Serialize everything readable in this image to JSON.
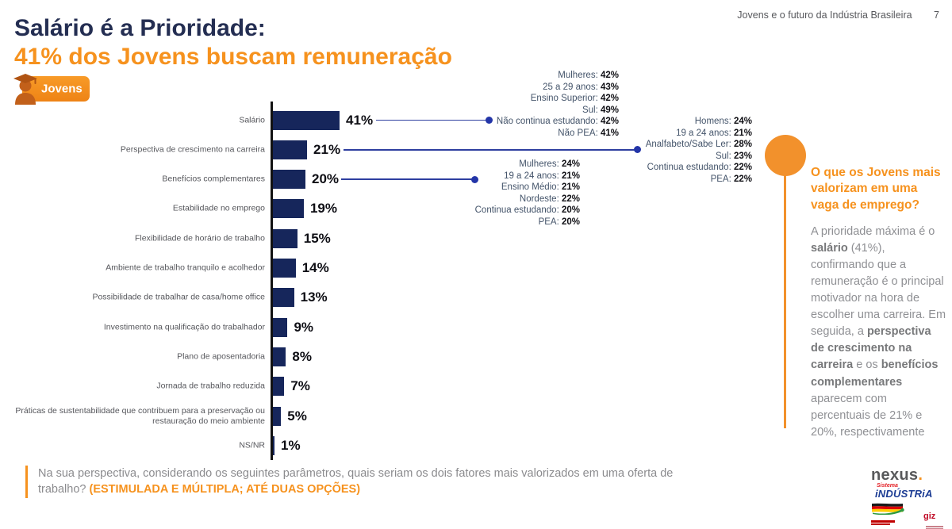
{
  "header": {
    "booklet_title": "Jovens e o futuro da Indústria Brasileira",
    "page_number": "7"
  },
  "title": {
    "line1": "Salário é a Prioridade:",
    "line2": "41% dos Jovens buscam remuneração"
  },
  "badge": {
    "label": "Jovens",
    "icon": "graduate-person-icon"
  },
  "chart_data": {
    "type": "bar",
    "orientation": "horizontal",
    "title": "",
    "xlabel": "",
    "ylabel": "",
    "xlim": [
      0,
      50
    ],
    "grid": false,
    "bar_color": "#16265b",
    "categories": [
      "Salário",
      "Perspectiva de crescimento na carreira",
      "Benefícios complementares",
      "Estabilidade no emprego",
      "Flexibilidade de horário de trabalho",
      "Ambiente de trabalho tranquilo e acolhedor",
      "Possibilidade de trabalhar de casa/home office",
      "Investimento na qualificação do trabalhador",
      "Plano de aposentadoria",
      "Jornada de trabalho reduzida",
      "Práticas de sustentabilidade que contribuem para a preservação ou restauração do meio ambiente",
      "NS/NR"
    ],
    "values": [
      41,
      21,
      20,
      19,
      15,
      14,
      13,
      9,
      8,
      7,
      5,
      1
    ],
    "value_labels": [
      "41%",
      "21%",
      "20%",
      "19%",
      "15%",
      "14%",
      "13%",
      "9%",
      "8%",
      "7%",
      "5%",
      "1%"
    ]
  },
  "callouts": [
    {
      "target": "Salário",
      "items": [
        {
          "label": "Mulheres",
          "value": "42%"
        },
        {
          "label": "25 a 29 anos",
          "value": "43%"
        },
        {
          "label": "Ensino Superior",
          "value": "42%"
        },
        {
          "label": "Sul",
          "value": "49%"
        },
        {
          "label": "Não continua estudando",
          "value": "42%"
        },
        {
          "label": "Não PEA",
          "value": "41%"
        }
      ]
    },
    {
      "target": "Perspectiva de crescimento na carreira",
      "items": [
        {
          "label": "Homens",
          "value": "24%"
        },
        {
          "label": "19 a 24 anos",
          "value": "21%"
        },
        {
          "label": "Analfabeto/Sabe Ler",
          "value": "28%"
        },
        {
          "label": "Sul",
          "value": "23%"
        },
        {
          "label": "Continua estudando",
          "value": "22%"
        },
        {
          "label": "PEA",
          "value": "22%"
        }
      ]
    },
    {
      "target": "Benefícios complementares",
      "items": [
        {
          "label": "Mulheres",
          "value": "24%"
        },
        {
          "label": "19 a 24 anos",
          "value": "21%"
        },
        {
          "label": "Ensino Médio",
          "value": "21%"
        },
        {
          "label": "Nordeste",
          "value": "22%"
        },
        {
          "label": "Continua estudando",
          "value": "20%"
        },
        {
          "label": "PEA",
          "value": "20%"
        }
      ]
    }
  ],
  "sidebar": {
    "heading": "O que os Jovens mais valorizam em uma vaga de emprego?",
    "paragraph_parts": [
      {
        "text": "A prioridade máxima é o ",
        "bold": false
      },
      {
        "text": "salário",
        "bold": true
      },
      {
        "text": " (41%), confirmando que a remuneração é o principal motivador na hora de escolher uma carreira. Em seguida, a ",
        "bold": false
      },
      {
        "text": "perspectiva de crescimento na carreira",
        "bold": true
      },
      {
        "text": " e os ",
        "bold": false
      },
      {
        "text": "benefícios complementares",
        "bold": true
      },
      {
        "text": " aparecem com percentuais de 21% e 20%, respectivamente",
        "bold": false
      }
    ]
  },
  "footnote": {
    "question": "Na sua perspectiva, considerando os seguintes parâmetros, quais seriam os dois fatores mais valorizados em uma oferta de trabalho?",
    "highlight": "(ESTIMULADA E MÚLTIPLA; ATÉ DUAS OPÇÕES)"
  },
  "logos": {
    "nexus_text": "nexus",
    "nexus_dot": ".",
    "sistema_top": "Sistema",
    "sistema_bottom": "iNDÚSTRiA",
    "giz_text": "giz"
  },
  "colors": {
    "accent_orange": "#f6921e",
    "navy_title": "#242e52",
    "bar_navy": "#16265b",
    "connector_blue": "#2e3fa0",
    "circle_orange": "#f2912c"
  }
}
